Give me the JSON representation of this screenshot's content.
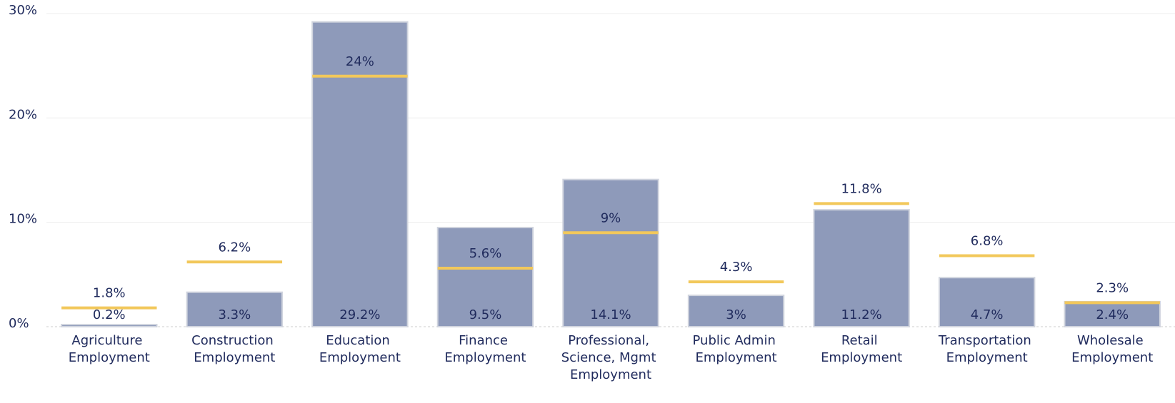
{
  "chart_data": {
    "type": "bar",
    "categories": [
      "Agriculture Employment",
      "Construction Employment",
      "Education Employment",
      "Finance Employment",
      "Professional, Science, Mgmt Employment",
      "Public Admin Employment",
      "Retail Employment",
      "Transportation Employment",
      "Wholesale Employment"
    ],
    "series": [
      {
        "color": "#8e9aba",
        "values": [
          0.2,
          3.3,
          29.2,
          9.5,
          14.1,
          3,
          11.2,
          4.7,
          2.4
        ],
        "value_labels": [
          "0.2%",
          "3.3%",
          "29.2%",
          "9.5%",
          "14.1%",
          "3%",
          "11.2%",
          "4.7%",
          "2.4%"
        ]
      },
      {
        "color": "#f2c85b",
        "values": [
          1.8,
          6.2,
          24,
          5.6,
          9,
          4.3,
          11.8,
          6.8,
          2.3
        ],
        "value_labels": [
          "1.8%",
          "6.2%",
          "24%",
          "5.6%",
          "9%",
          "4.3%",
          "11.8%",
          "6.8%",
          "2.3%"
        ]
      }
    ],
    "ylim": [
      0,
      30
    ],
    "yticks": [
      {
        "value": 0,
        "label": "0%"
      },
      {
        "value": 10,
        "label": "10%"
      },
      {
        "value": 20,
        "label": "20%"
      },
      {
        "value": 30,
        "label": "30%"
      }
    ],
    "grid": true
  }
}
